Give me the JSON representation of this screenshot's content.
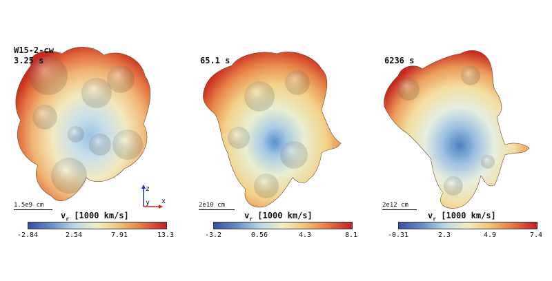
{
  "panels": [
    {
      "model": "W15-2-cw",
      "time": "3.25 s",
      "scale": "1.5e9 cm",
      "cbar_title": "v",
      "cbar_sub": "r",
      "cbar_units": "[1000 km/s]",
      "ticks": [
        "-2.84",
        "2.54",
        "7.91",
        "13.3"
      ]
    },
    {
      "time": "65.1 s",
      "scale": "2e10 cm",
      "cbar_title": "v",
      "cbar_sub": "r",
      "cbar_units": "[1000 km/s]",
      "ticks": [
        "-3.2",
        "0.56",
        "4.3",
        "8.1"
      ]
    },
    {
      "time": "6236 s",
      "scale": "2e12 cm",
      "cbar_title": "v",
      "cbar_sub": "r",
      "cbar_units": "[1000 km/s]",
      "ticks": [
        "-0.31",
        "2.3",
        "4.9",
        "7.4"
      ]
    }
  ],
  "axes": {
    "z": "z",
    "y": "y",
    "x": "x"
  },
  "colors": {
    "low": "#3a4ea3",
    "mid": "#f1eec4",
    "high": "#c41f26"
  }
}
